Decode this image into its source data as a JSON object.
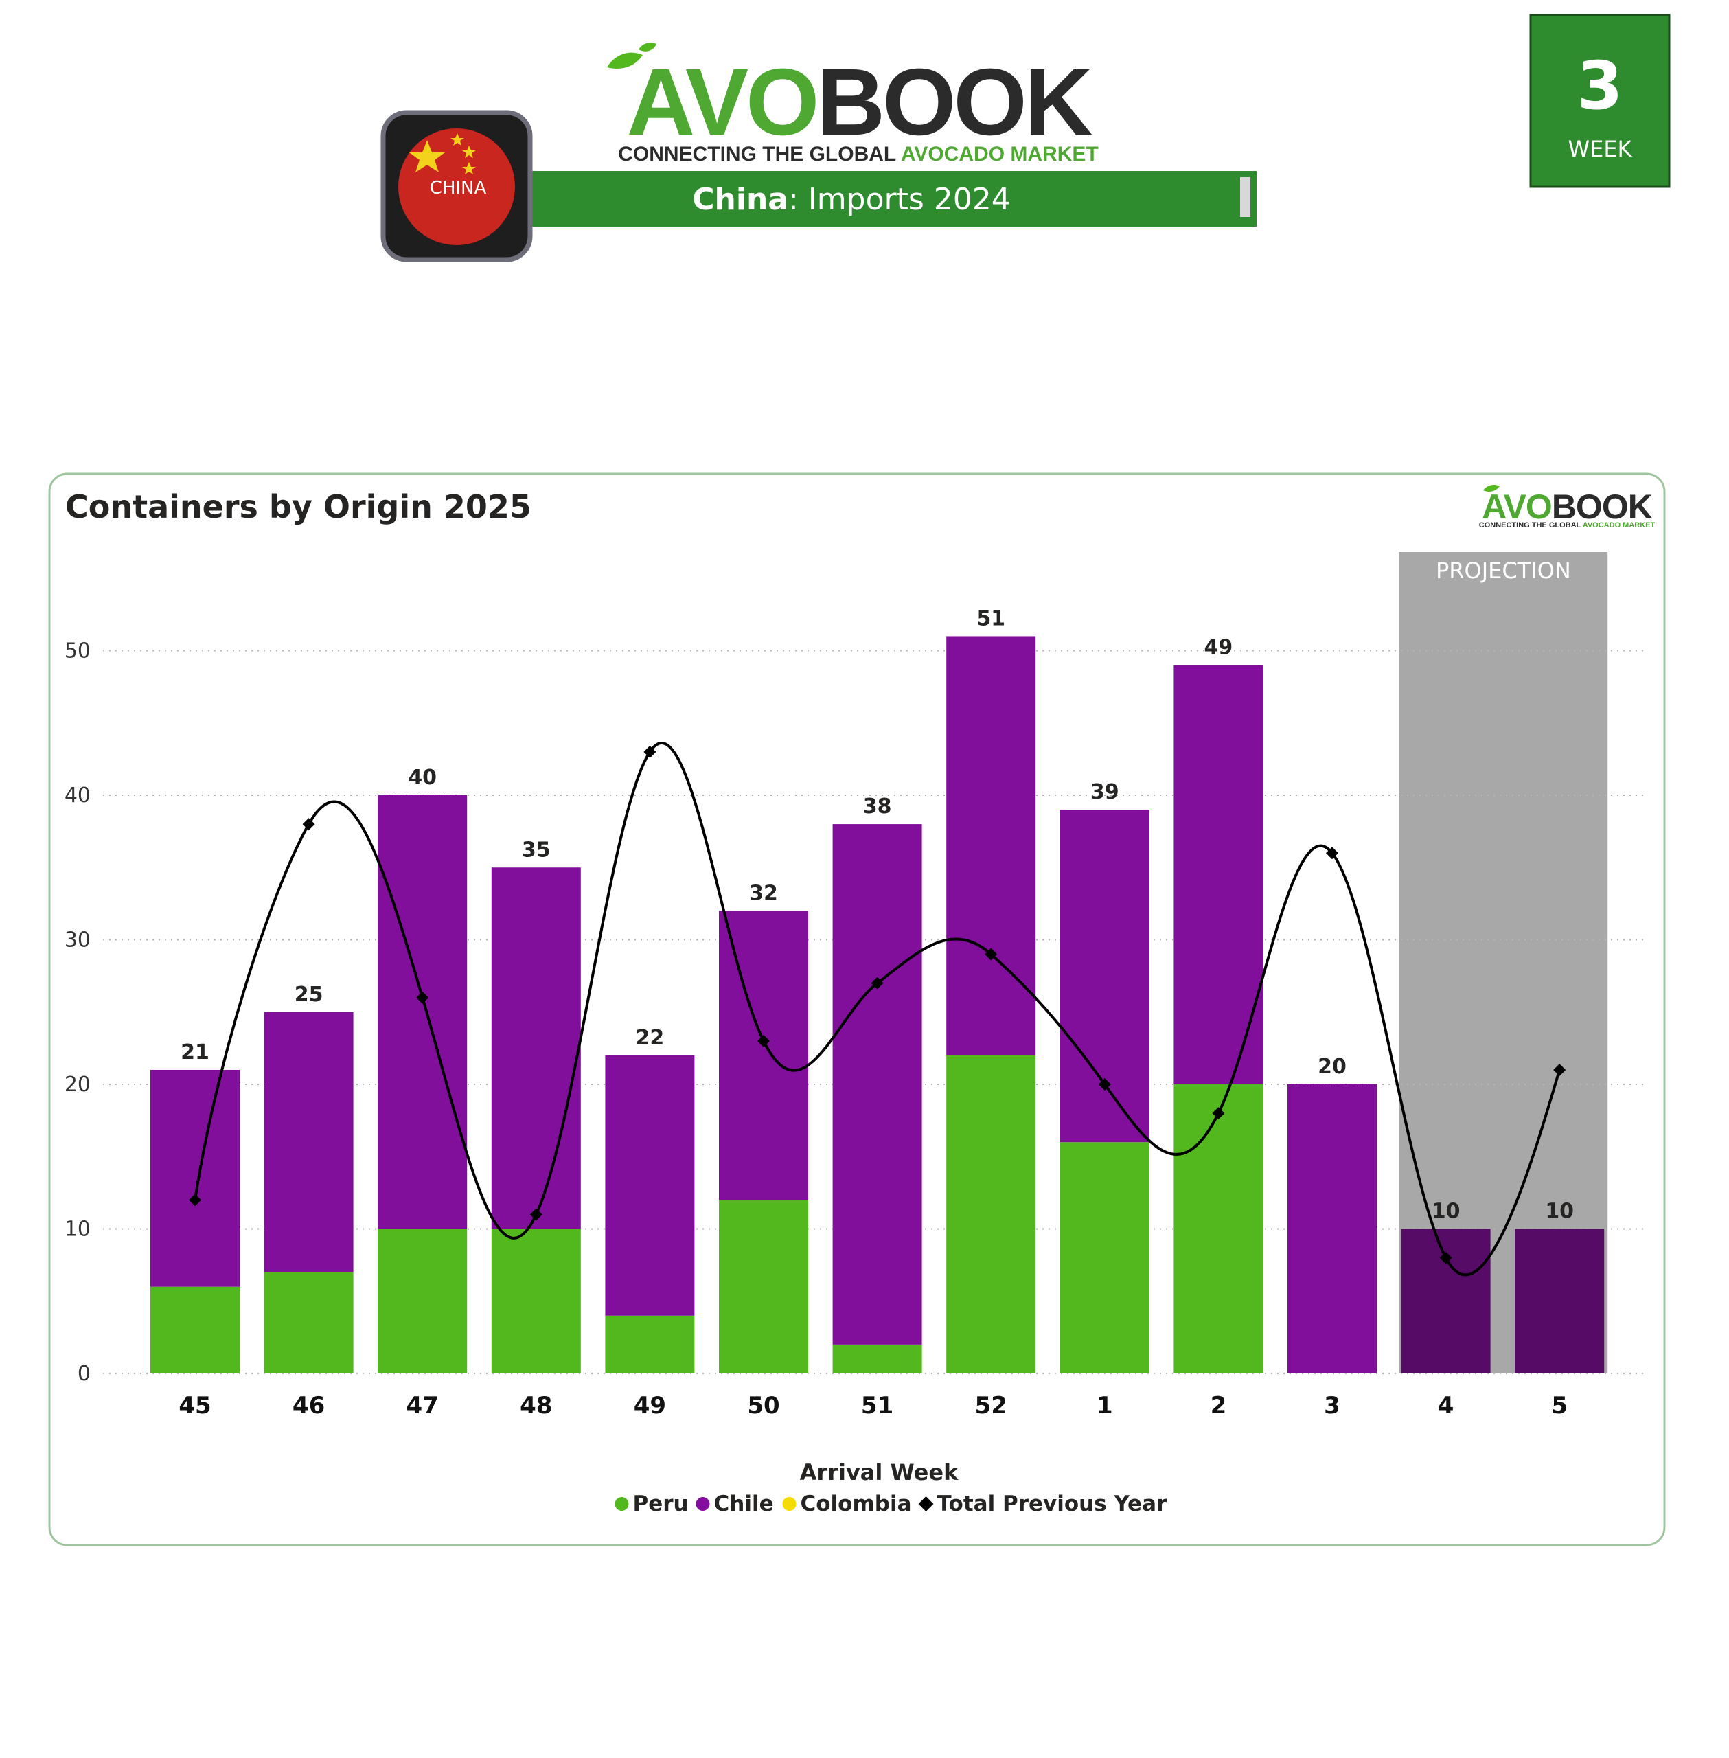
{
  "header": {
    "logo_avo": "AVO",
    "logo_book": "BOOK",
    "tagline_dark": "CONNECTING THE GLOBAL ",
    "tagline_green": "AVOCADO MARKET",
    "country_badge": "CHINA",
    "banner_bold": "China",
    "banner_rest": ": Imports 2024"
  },
  "week_box": {
    "number": "3",
    "label": "WEEK"
  },
  "chart_panel": {
    "title": "Containers by Origin 2025",
    "mini_logo_avo": "AVO",
    "mini_logo_book": "BOOK",
    "mini_tagline_dark": "CONNECTING THE GLOBAL ",
    "mini_tagline_green": "AVOCADO MARKET",
    "projection_label": "PROJECTION"
  },
  "colors": {
    "peru": "#52b81e",
    "chile": "#810f9b",
    "chile_projection": "#560b66",
    "colombia": "#f5dc00",
    "line": "#000000",
    "brand_green": "#2e8b2e",
    "projection_band": "#a8a8a8"
  },
  "chart_data": {
    "type": "bar",
    "stacked": true,
    "title": "Containers by Origin 2025",
    "xlabel": "Arrival Week",
    "ylabel": "",
    "categories": [
      "45",
      "46",
      "47",
      "48",
      "49",
      "50",
      "51",
      "52",
      "1",
      "2",
      "3",
      "4",
      "5"
    ],
    "yticks": [
      0,
      10,
      20,
      30,
      40,
      50
    ],
    "ylim": [
      0,
      55
    ],
    "grid": true,
    "legend_position": "bottom",
    "projection_categories": [
      "4",
      "5"
    ],
    "series": [
      {
        "name": "Peru",
        "type": "bar",
        "values": [
          6,
          7,
          10,
          10,
          4,
          12,
          2,
          22,
          16,
          20,
          0,
          0,
          0
        ]
      },
      {
        "name": "Chile",
        "type": "bar",
        "values": [
          15,
          18,
          30,
          25,
          18,
          20,
          36,
          29,
          23,
          29,
          20,
          10,
          10
        ]
      },
      {
        "name": "Colombia",
        "type": "bar",
        "values": [
          0,
          0,
          0,
          0,
          0,
          0,
          0,
          0,
          0,
          0,
          0,
          0,
          0
        ]
      },
      {
        "name": "Total Previous Year",
        "type": "line",
        "values": [
          12,
          38,
          26,
          11,
          43,
          23,
          27,
          29,
          20,
          18,
          36,
          8,
          21
        ]
      }
    ],
    "totals": [
      21,
      25,
      40,
      35,
      22,
      32,
      38,
      51,
      39,
      49,
      20,
      10,
      10
    ]
  }
}
